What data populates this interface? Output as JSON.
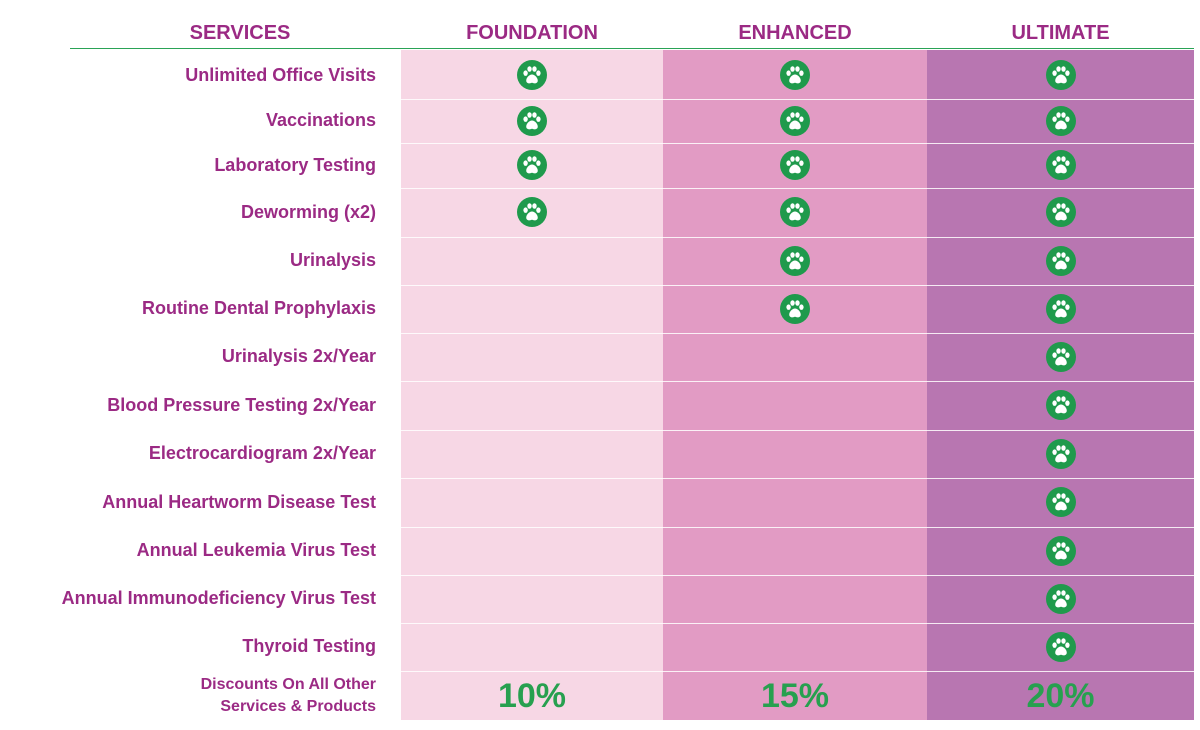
{
  "header": {
    "services": "SERVICES",
    "foundation": "FOUNDATION",
    "enhanced": "ENHANCED",
    "ultimate": "ULTIMATE"
  },
  "icon": "paw-print-icon",
  "colors": {
    "text": "#9b2a84",
    "foundation_bg": "#f7d7e5",
    "enhanced_bg": "#e29bc4",
    "ultimate_bg": "#b876b1",
    "check_green": "#1f9a4c"
  },
  "rows": [
    {
      "label": "Unlimited Office Visits",
      "foundation": true,
      "enhanced": true,
      "ultimate": true
    },
    {
      "label": "Vaccinations",
      "foundation": true,
      "enhanced": true,
      "ultimate": true
    },
    {
      "label": "Laboratory Testing",
      "foundation": true,
      "enhanced": true,
      "ultimate": true
    },
    {
      "label": "Deworming (x2)",
      "foundation": true,
      "enhanced": true,
      "ultimate": true
    },
    {
      "label": "Urinalysis",
      "foundation": false,
      "enhanced": true,
      "ultimate": true
    },
    {
      "label": "Routine Dental Prophylaxis",
      "foundation": false,
      "enhanced": true,
      "ultimate": true
    },
    {
      "label": "Urinalysis 2x/Year",
      "foundation": false,
      "enhanced": false,
      "ultimate": true
    },
    {
      "label": "Blood Pressure Testing 2x/Year",
      "foundation": false,
      "enhanced": false,
      "ultimate": true
    },
    {
      "label": "Electrocardiogram 2x/Year",
      "foundation": false,
      "enhanced": false,
      "ultimate": true
    },
    {
      "label": "Annual Heartworm Disease Test",
      "foundation": false,
      "enhanced": false,
      "ultimate": true
    },
    {
      "label": "Annual Leukemia Virus Test",
      "foundation": false,
      "enhanced": false,
      "ultimate": true
    },
    {
      "label": "Annual Immunodeficiency Virus Test",
      "foundation": false,
      "enhanced": false,
      "ultimate": true
    },
    {
      "label": "Thyroid Testing",
      "foundation": false,
      "enhanced": false,
      "ultimate": true
    }
  ],
  "discounts": {
    "label_line1": "Discounts On All Other",
    "label_line2": "Services & Products",
    "foundation": "10%",
    "enhanced": "15%",
    "ultimate": "20%"
  }
}
